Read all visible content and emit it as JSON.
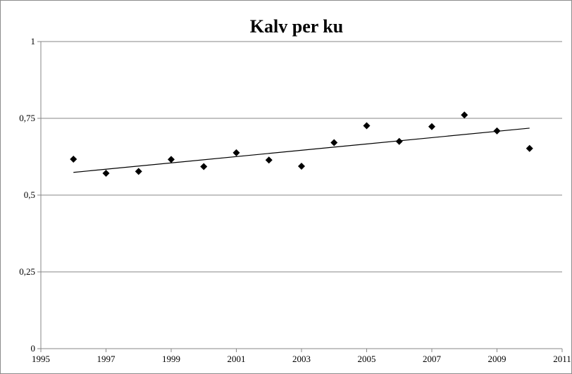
{
  "chart_data": {
    "type": "scatter",
    "title": "Kalv per ku",
    "xlabel": "",
    "ylabel": "",
    "xlim": [
      1995,
      2011
    ],
    "ylim": [
      0,
      1
    ],
    "x_ticks": [
      1995,
      1997,
      1999,
      2001,
      2003,
      2005,
      2007,
      2009,
      2011
    ],
    "y_ticks": [
      0,
      0.25,
      0.5,
      0.75,
      1
    ],
    "y_tick_labels": [
      "0",
      "0,25",
      "0,5",
      "0,75",
      "1"
    ],
    "grid": "horizontal",
    "legend": "none",
    "marker": "diamond",
    "marker_color": "#000000",
    "series": [
      {
        "x": [
          1996,
          1997,
          1998,
          1999,
          2000,
          2001,
          2002,
          2003,
          2004,
          2005,
          2006,
          2007,
          2008,
          2009,
          2010
        ],
        "y": [
          0.617,
          0.571,
          0.577,
          0.616,
          0.593,
          0.638,
          0.614,
          0.594,
          0.671,
          0.726,
          0.675,
          0.723,
          0.761,
          0.709,
          0.652
        ]
      }
    ],
    "trendline": {
      "type": "linear",
      "x_start": 1996,
      "y_start": 0.574,
      "x_end": 2010,
      "y_end": 0.718
    }
  }
}
